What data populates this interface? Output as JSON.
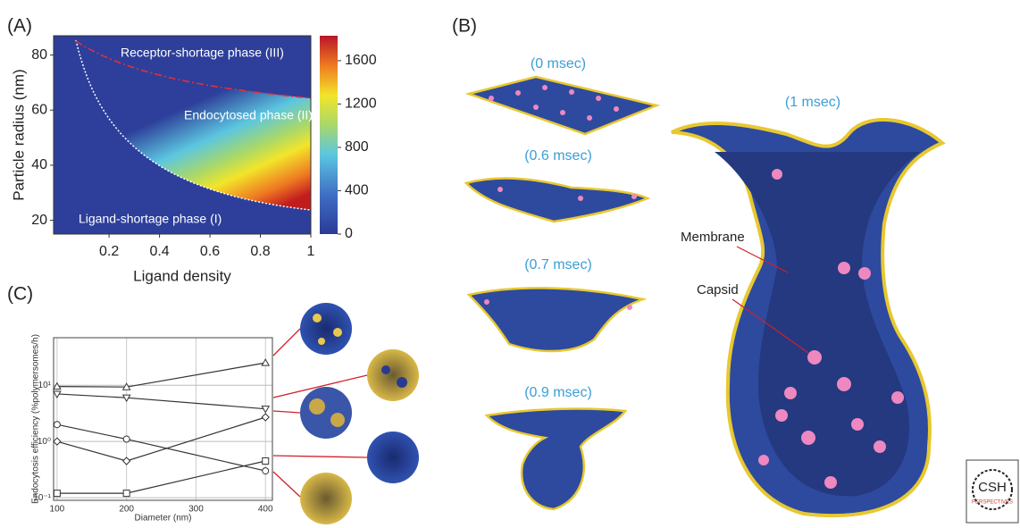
{
  "panel_labels": {
    "a": "(A)",
    "b": "(B)",
    "c": "(C)"
  },
  "chart_data": [
    {
      "type": "heatmap",
      "xlabel": "Ligand density",
      "ylabel": "Particle radius (nm)",
      "xlim": [
        -0.02,
        1
      ],
      "ylim": [
        15,
        87
      ],
      "xticks": [
        0.2,
        0.4,
        0.6,
        0.8,
        1
      ],
      "yticks": [
        20,
        40,
        60,
        80
      ],
      "colorbar": {
        "lim": [
          0,
          1830
        ],
        "ticks": [
          0,
          400,
          800,
          1200,
          1600
        ]
      },
      "annotations": [
        "Receptor-shortage phase (III)",
        "Endocytosed phase (II)",
        "Ligand-shortage phase (I)"
      ]
    },
    {
      "type": "line",
      "xlabel": "Diameter (nm)",
      "ylabel": "Endocytosis efficiency (%polymersomes/h)",
      "x": [
        100,
        200,
        400
      ],
      "xlim": [
        95,
        410
      ],
      "ylim": [
        0.09,
        70
      ],
      "yscale": "log",
      "grid": true,
      "xticks": [
        100,
        200,
        300,
        400
      ],
      "yticks": [
        {
          "value": 0.1,
          "label": "10⁻¹"
        },
        {
          "value": 1,
          "label": "10⁰"
        },
        {
          "value": 10,
          "label": "10¹"
        }
      ],
      "series": [
        {
          "color": "#333333",
          "marker": "triangle",
          "values": [
            9.5,
            9.3,
            25
          ]
        },
        {
          "color": "#333333",
          "marker": "down-triangle",
          "values": [
            7,
            6,
            3.8
          ]
        },
        {
          "color": "#333333",
          "marker": "circle",
          "values": [
            2,
            1.1,
            0.3
          ]
        },
        {
          "color": "#333333",
          "marker": "diamond",
          "values": [
            1,
            0.45,
            2.7
          ]
        },
        {
          "color": "#333333",
          "marker": "square",
          "values": [
            0.12,
            0.12,
            0.45
          ]
        }
      ]
    }
  ],
  "panel_b": {
    "time_labels": [
      "(0 msec)",
      "(0.6 msec)",
      "(0.7 msec)",
      "(0.9 msec)",
      "(1 msec)"
    ],
    "annotations": [
      "Membrane",
      "Capsid"
    ]
  },
  "logo": {
    "title": "CSH",
    "subtitle": "PERSPECTIVES"
  }
}
